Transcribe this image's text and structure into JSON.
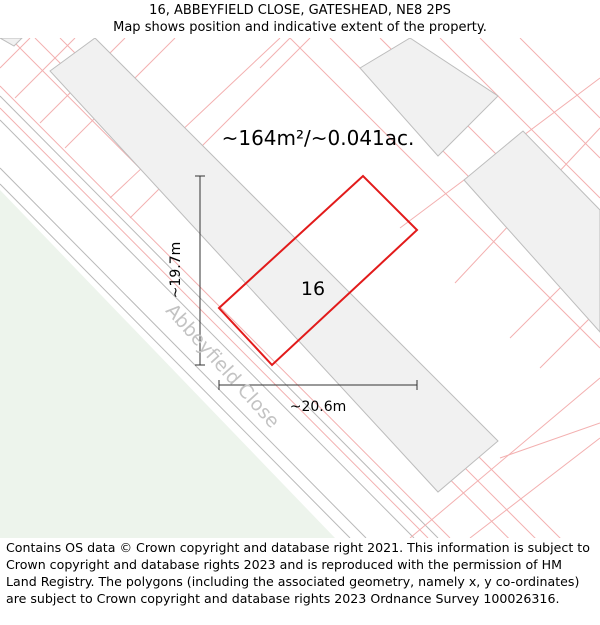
{
  "header": {
    "title": "16, ABBEYFIELD CLOSE, GATESHEAD, NE8 2PS",
    "subtitle": "Map shows position and indicative extent of the property."
  },
  "map": {
    "area_label": "~164m²/~0.041ac.",
    "plot_number": "16",
    "street_name": "Abbeyfield Close",
    "height_label": "~19.7m",
    "width_label": "~20.6m",
    "colors": {
      "boundary": "#e21b1b",
      "parcel_lines": "#f3b0b0",
      "building_fill": "#f1f1f1",
      "building_stroke": "#bdbdbd",
      "green_area": "#edf4ec",
      "road_lines": "#b9b9b9",
      "street_text": "#c3c3c3"
    }
  },
  "footer": {
    "attribution": "Contains OS data © Crown copyright and database right 2021. This information is subject to Crown copyright and database rights 2023 and is reproduced with the permission of HM Land Registry. The polygons (including the associated geometry, namely x, y co-ordinates) are subject to Crown copyright and database rights 2023 Ordnance Survey 100026316."
  }
}
